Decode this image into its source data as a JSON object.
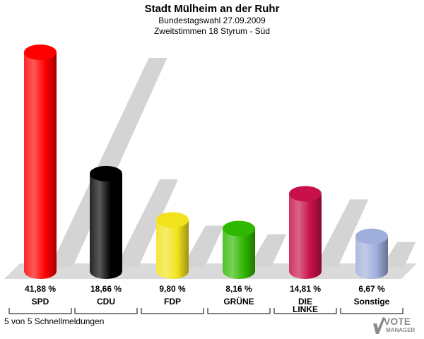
{
  "header": {
    "title": "Stadt Mülheim an der Ruhr",
    "subtitle1": "Bundestagswahl 27.09.2009",
    "subtitle2": "Zweitstimmen 18 Styrum - Süd"
  },
  "footer": {
    "status": "5 von 5 Schnellmeldungen"
  },
  "logo": {
    "line1": "VOTE",
    "line2": "MANAGER",
    "icon": "ballot-checkmark-icon"
  },
  "chart_data": {
    "type": "bar",
    "categories": [
      "SPD",
      "CDU",
      "FDP",
      "GRÜNE",
      "DIE LINKE",
      "Sonstige"
    ],
    "category_labels": [
      [
        "SPD"
      ],
      [
        "CDU"
      ],
      [
        "FDP"
      ],
      [
        "GRÜNE"
      ],
      [
        "DIE",
        "LINKE"
      ],
      [
        "Sonstige"
      ]
    ],
    "values": [
      41.88,
      18.66,
      9.8,
      8.16,
      14.81,
      6.67
    ],
    "value_labels": [
      "41,88 %",
      "18,66 %",
      "9,80 %",
      "8,16 %",
      "14,81 %",
      "6,67 %"
    ],
    "colors": [
      "#ff0000",
      "#000000",
      "#f2e21b",
      "#2fb800",
      "#c8104a",
      "#a0aedc"
    ],
    "ylim": [
      0,
      41.88
    ],
    "grid": false,
    "legend": "none"
  }
}
